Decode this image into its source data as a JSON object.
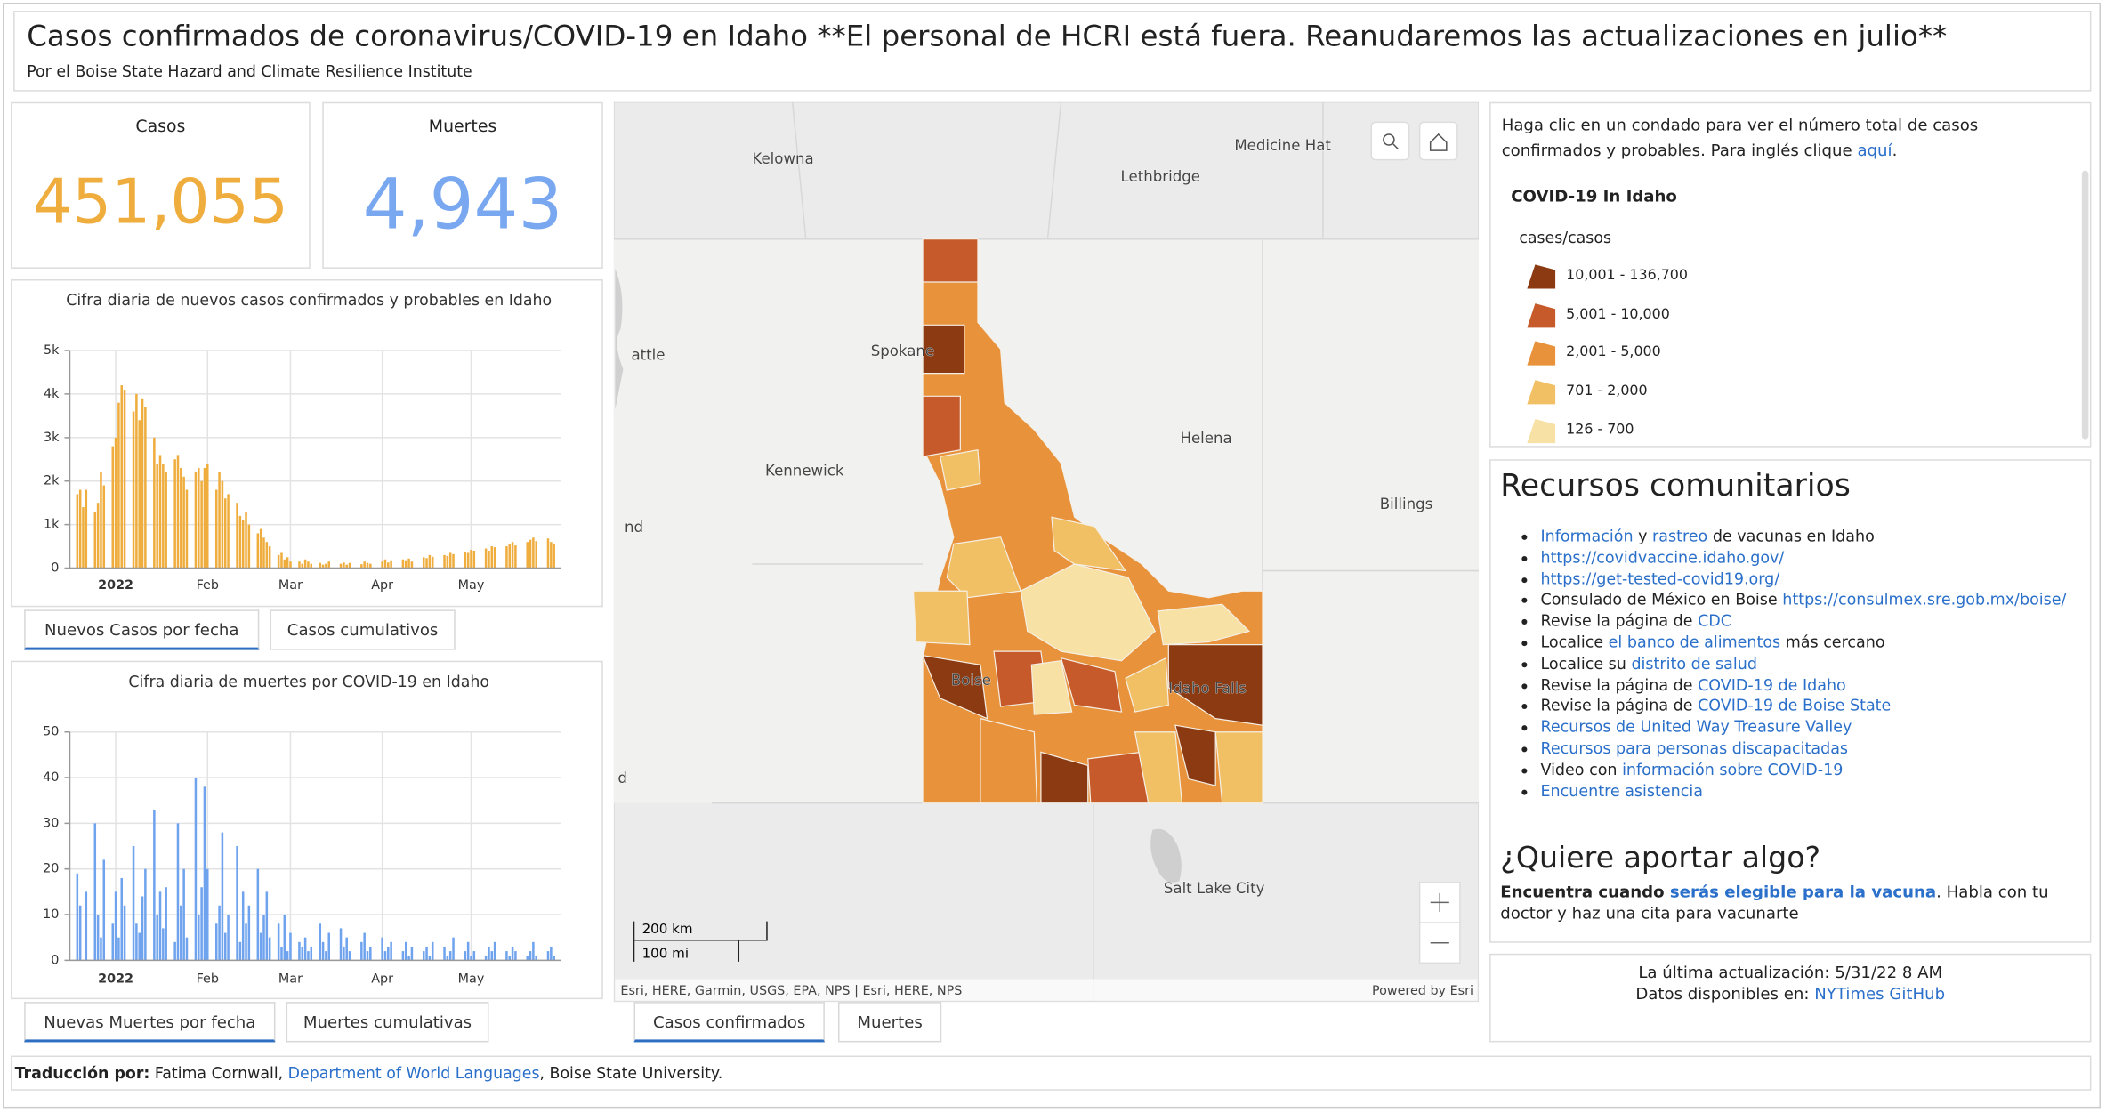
{
  "header": {
    "title": "Casos confirmados de coronavirus/COVID-19 en Idaho **El personal de HCRI está fuera. Reanudaremos las actualizaciones en julio**",
    "subtitle": "Por el Boise State Hazard and Climate Resilience Institute"
  },
  "kpis": [
    {
      "label": "Casos",
      "value": "451,055"
    },
    {
      "label": "Muertes",
      "value": "4,943"
    }
  ],
  "chart_data": [
    {
      "type": "bar",
      "title": "Cifra diaria de nuevos casos confirmados y probables en Idaho",
      "color": "#efad3e",
      "grid": true,
      "categories": [
        null,
        null,
        null,
        null,
        null,
        null,
        null,
        null,
        null,
        null,
        null,
        null,
        null,
        null,
        null,
        "2022",
        null,
        null,
        null,
        null,
        null,
        null,
        null,
        null,
        null,
        null,
        null,
        null,
        null,
        null,
        null,
        null,
        null,
        null,
        null,
        null,
        null,
        null,
        null,
        null,
        null,
        null,
        null,
        null,
        null,
        null,
        "Feb",
        null,
        null,
        null,
        null,
        null,
        null,
        null,
        null,
        null,
        null,
        null,
        null,
        null,
        null,
        null,
        null,
        null,
        null,
        null,
        null,
        null,
        null,
        null,
        null,
        null,
        null,
        null,
        "Mar",
        null,
        null,
        null,
        null,
        null,
        null,
        null,
        null,
        null,
        null,
        null,
        null,
        null,
        null,
        null,
        null,
        null,
        null,
        null,
        null,
        null,
        null,
        null,
        null,
        null,
        null,
        null,
        null,
        null,
        null,
        "Apr",
        null,
        null,
        null,
        null,
        null,
        null,
        null,
        null,
        null,
        null,
        null,
        null,
        null,
        null,
        null,
        null,
        null,
        null,
        null,
        null,
        null,
        null,
        null,
        null,
        null,
        null,
        null,
        null,
        null,
        "May",
        null,
        null,
        null,
        null,
        null,
        null,
        null,
        null,
        null,
        null,
        null,
        null,
        null,
        null,
        null,
        null,
        null,
        null,
        null,
        null,
        null,
        null,
        null,
        null,
        null,
        null,
        null,
        null,
        null,
        null
      ],
      "values": [
        0,
        0,
        1700,
        1800,
        1400,
        1800,
        0,
        0,
        1300,
        1500,
        2200,
        1900,
        0,
        0,
        2800,
        3000,
        3800,
        4200,
        4100,
        0,
        0,
        3600,
        4000,
        3400,
        3900,
        3700,
        0,
        0,
        3000,
        2400,
        2600,
        2400,
        2200,
        0,
        0,
        2500,
        2600,
        2300,
        2100,
        1800,
        0,
        0,
        2200,
        2300,
        2000,
        2300,
        2400,
        0,
        0,
        1800,
        2200,
        2000,
        1600,
        1700,
        0,
        0,
        1500,
        1200,
        1100,
        1300,
        1000,
        0,
        0,
        800,
        900,
        700,
        600,
        500,
        0,
        0,
        300,
        350,
        200,
        250,
        150,
        0,
        0,
        150,
        100,
        200,
        150,
        100,
        0,
        0,
        120,
        80,
        100,
        150,
        0,
        0,
        0,
        100,
        130,
        80,
        120,
        0,
        0,
        0,
        90,
        150,
        120,
        100,
        0,
        0,
        0,
        150,
        200,
        130,
        180,
        0,
        0,
        0,
        200,
        180,
        220,
        150,
        0,
        0,
        0,
        250,
        230,
        300,
        260,
        0,
        0,
        0,
        300,
        280,
        350,
        320,
        0,
        0,
        0,
        380,
        350,
        420,
        400,
        0,
        0,
        0,
        450,
        400,
        500,
        480,
        0,
        0,
        0,
        500,
        550,
        600,
        520,
        0,
        0,
        0,
        600,
        650,
        700,
        620,
        0,
        0,
        0,
        680,
        600,
        550,
        0,
        0
      ],
      "ylim": [
        0,
        5000
      ],
      "yticks": [
        0,
        {
          "value": 1000,
          "label": "1k"
        },
        {
          "value": 2000,
          "label": "2k"
        },
        {
          "value": 3000,
          "label": "3k"
        },
        {
          "value": 4000,
          "label": "4k"
        },
        {
          "value": 5000,
          "label": "5k"
        }
      ],
      "tabs": [
        "Nuevos Casos por fecha",
        "Casos cumulativos"
      ]
    },
    {
      "type": "bar",
      "title": "Cifra diaria de muertes por COVID-19 en Idaho",
      "color": "#6fa3ee",
      "grid": true,
      "categories": [
        null,
        null,
        null,
        null,
        null,
        null,
        null,
        null,
        null,
        null,
        null,
        null,
        null,
        null,
        null,
        "2022",
        null,
        null,
        null,
        null,
        null,
        null,
        null,
        null,
        null,
        null,
        null,
        null,
        null,
        null,
        null,
        null,
        null,
        null,
        null,
        null,
        null,
        null,
        null,
        null,
        null,
        null,
        null,
        null,
        null,
        null,
        "Feb",
        null,
        null,
        null,
        null,
        null,
        null,
        null,
        null,
        null,
        null,
        null,
        null,
        null,
        null,
        null,
        null,
        null,
        null,
        null,
        null,
        null,
        null,
        null,
        null,
        null,
        null,
        null,
        "Mar",
        null,
        null,
        null,
        null,
        null,
        null,
        null,
        null,
        null,
        null,
        null,
        null,
        null,
        null,
        null,
        null,
        null,
        null,
        null,
        null,
        null,
        null,
        null,
        null,
        null,
        null,
        null,
        null,
        null,
        null,
        "Apr",
        null,
        null,
        null,
        null,
        null,
        null,
        null,
        null,
        null,
        null,
        null,
        null,
        null,
        null,
        null,
        null,
        null,
        null,
        null,
        null,
        null,
        null,
        null,
        null,
        null,
        null,
        null,
        null,
        null,
        "May",
        null,
        null,
        null,
        null,
        null,
        null,
        null,
        null,
        null,
        null,
        null,
        null,
        null,
        null,
        null,
        null,
        null,
        null,
        null,
        null,
        null,
        null,
        null,
        null,
        null,
        null,
        null,
        null,
        null,
        null
      ],
      "values": [
        0,
        0,
        19,
        12,
        0,
        15,
        0,
        0,
        30,
        10,
        5,
        22,
        0,
        0,
        8,
        15,
        5,
        18,
        12,
        0,
        0,
        25,
        8,
        6,
        14,
        20,
        0,
        0,
        33,
        10,
        15,
        7,
        16,
        0,
        0,
        4,
        30,
        12,
        20,
        5,
        0,
        0,
        40,
        10,
        16,
        38,
        20,
        0,
        0,
        8,
        12,
        28,
        6,
        10,
        0,
        0,
        25,
        4,
        15,
        8,
        12,
        0,
        0,
        20,
        6,
        10,
        15,
        5,
        0,
        0,
        8,
        3,
        10,
        2,
        6,
        0,
        0,
        4,
        3,
        5,
        2,
        3,
        0,
        0,
        8,
        4,
        2,
        6,
        0,
        0,
        0,
        7,
        3,
        5,
        2,
        0,
        0,
        0,
        4,
        6,
        2,
        3,
        0,
        0,
        0,
        5,
        2,
        3,
        4,
        0,
        0,
        0,
        2,
        4,
        1,
        3,
        0,
        0,
        0,
        2,
        3,
        1,
        4,
        0,
        0,
        0,
        3,
        1,
        2,
        5,
        0,
        0,
        0,
        2,
        4,
        1,
        2,
        0,
        0,
        0,
        1,
        3,
        2,
        4,
        0,
        0,
        0,
        2,
        1,
        3,
        2,
        0,
        0,
        0,
        1,
        2,
        4,
        1,
        0,
        0,
        0,
        2,
        3,
        1,
        0,
        0
      ],
      "ylim": [
        0,
        50
      ],
      "yticks": [
        0,
        10,
        20,
        30,
        40,
        50
      ],
      "tabs": [
        "Nuevas Muertes por fecha",
        "Muertes cumulativas"
      ]
    }
  ],
  "map": {
    "labels": [
      "Kelowna",
      "Lethbridge",
      "Medicine Hat",
      "Spokane",
      "Helena",
      "Kennewick",
      "Billings",
      "Boise",
      "Idaho Falls",
      "Salt Lake City",
      "attle",
      "nd",
      "d"
    ],
    "scale": [
      "200 km",
      "100 mi"
    ],
    "attribution": "Esri, HERE, Garmin, USGS, EPA, NPS | Esri, HERE, NPS",
    "powered": "Powered by Esri",
    "tabs": [
      "Casos confirmados",
      "Muertes"
    ]
  },
  "info": {
    "intro": [
      {
        "text": "Haga clic en un condado para ver el número total de casos confirmados y probables. Para inglés clique "
      },
      {
        "text": "aquí",
        "link": true
      },
      {
        "text": "."
      }
    ],
    "legend_title": "COVID-19 In Idaho",
    "legend_subtitle": "cases/casos",
    "legend": [
      {
        "label": "10,001 - 136,700",
        "color": "#8b3a12"
      },
      {
        "label": "5,001 - 10,000",
        "color": "#c65a2a"
      },
      {
        "label": "2,001 - 5,000",
        "color": "#e8923b"
      },
      {
        "label": "701 - 2,000",
        "color": "#f2c064"
      },
      {
        "label": "126 - 700",
        "color": "#f8e1a4"
      }
    ]
  },
  "resources": {
    "title": "Recursos comunitarios",
    "items": [
      [
        {
          "text": "Información",
          "link": true
        },
        {
          "text": " y "
        },
        {
          "text": "rastreo",
          "link": true
        },
        {
          "text": " de vacunas en Idaho"
        }
      ],
      [
        {
          "text": "https://covidvaccine.idaho.gov/",
          "link": true
        }
      ],
      [
        {
          "text": "https://get-tested-covid19.org/",
          "link": true
        }
      ],
      [
        {
          "text": "Consulado de México en Boise "
        },
        {
          "text": "https://consulmex.sre.gob.mx/boise/",
          "link": true
        }
      ],
      [
        {
          "text": "Revise la página de "
        },
        {
          "text": "CDC",
          "link": true
        }
      ],
      [
        {
          "text": "Localice "
        },
        {
          "text": "el banco de alimentos",
          "link": true
        },
        {
          "text": " más cercano"
        }
      ],
      [
        {
          "text": "Localice su "
        },
        {
          "text": "distrito de salud",
          "link": true
        }
      ],
      [
        {
          "text": "Revise la página de "
        },
        {
          "text": "COVID-19 de Idaho",
          "link": true
        }
      ],
      [
        {
          "text": "Revise la página de "
        },
        {
          "text": "COVID-19 de Boise State",
          "link": true
        }
      ],
      [
        {
          "text": "Recursos de United Way Treasure Valley",
          "link": true
        }
      ],
      [
        {
          "text": "Recursos para personas discapacitadas",
          "link": true
        }
      ],
      [
        {
          "text": "Video con "
        },
        {
          "text": "información sobre COVID-19",
          "link": true
        }
      ],
      [
        {
          "text": "Encuentre asistencia",
          "link": true
        }
      ]
    ],
    "contribute_title": "¿Quiere aportar algo?",
    "contribute": [
      {
        "text": "Encuentra cuando ",
        "bold": true
      },
      {
        "text": "serás elegible para la vacuna",
        "link": true,
        "bold": true
      },
      {
        "text": ". Habla con tu doctor y haz una cita para vacunarte"
      }
    ]
  },
  "updated": {
    "line1": "La última actualización: 5/31/22 8 AM",
    "line2": [
      {
        "text": "Datos disponibles en: "
      },
      {
        "text": "NYTimes GitHub",
        "link": true
      }
    ]
  },
  "footer": [
    {
      "text": "Traducción por:",
      "bold": true
    },
    {
      "text": " Fatima Cornwall, "
    },
    {
      "text": "Department of World Languages",
      "link": true
    },
    {
      "text": ", Boise State University."
    }
  ]
}
